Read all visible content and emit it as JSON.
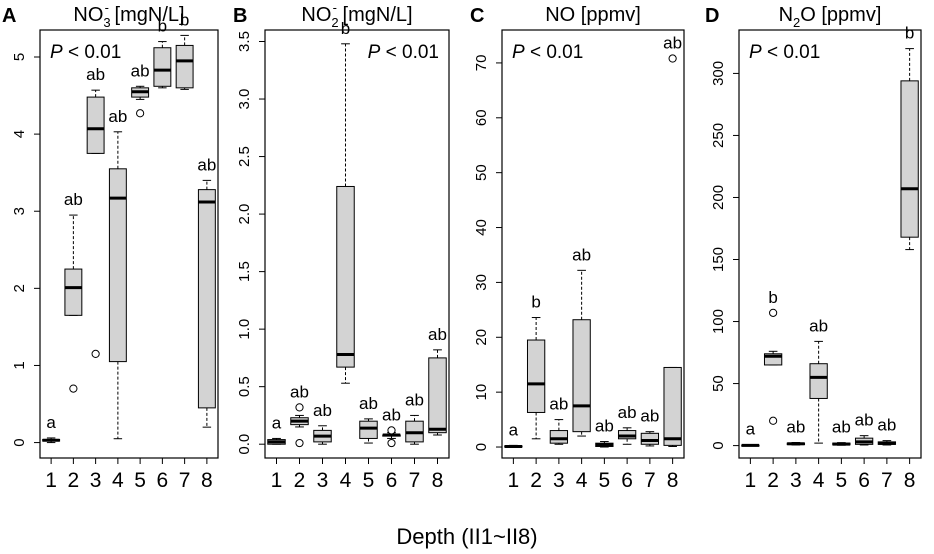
{
  "figure": {
    "xlabel": "Depth (II1~II8)"
  },
  "chart_data": [
    {
      "type": "boxplot",
      "panel_letter": "A",
      "title": "NO3- [mgN/L]",
      "title_parts": {
        "main": "NO",
        "sub": "3",
        "sup": "-",
        "unit": " [mgN/L]",
        "sup_before_sub": false
      },
      "p_label": "P < 0.01",
      "p_position": "top-left",
      "categories": [
        "1",
        "2",
        "3",
        "4",
        "5",
        "6",
        "7",
        "8"
      ],
      "ylim": [
        -0.2,
        5.35
      ],
      "yticks": [
        0,
        1,
        2,
        3,
        4,
        5
      ],
      "ytick_labels": [
        "0",
        "1",
        "2",
        "3",
        "4",
        "5"
      ],
      "boxes": [
        {
          "category": "1",
          "min": 0.0,
          "q1": 0.02,
          "median": 0.03,
          "q3": 0.04,
          "max": 0.06,
          "outliers": [],
          "letter": "a"
        },
        {
          "category": "2",
          "min": 1.65,
          "q1": 1.65,
          "median": 2.01,
          "q3": 2.25,
          "max": 2.95,
          "outliers": [
            0.7
          ],
          "letter": "ab"
        },
        {
          "category": "3",
          "min": 3.75,
          "q1": 3.75,
          "median": 4.07,
          "q3": 4.48,
          "max": 4.57,
          "outliers": [
            1.15
          ],
          "letter": "ab"
        },
        {
          "category": "4",
          "min": 0.05,
          "q1": 1.05,
          "median": 3.17,
          "q3": 3.55,
          "max": 4.03,
          "outliers": [],
          "letter": "ab"
        },
        {
          "category": "5",
          "min": 4.45,
          "q1": 4.48,
          "median": 4.55,
          "q3": 4.6,
          "max": 4.62,
          "outliers": [
            4.27
          ],
          "letter": "ab"
        },
        {
          "category": "6",
          "min": 4.6,
          "q1": 4.62,
          "median": 4.83,
          "q3": 5.12,
          "max": 5.2,
          "outliers": [],
          "letter": "b"
        },
        {
          "category": "7",
          "min": 4.58,
          "q1": 4.6,
          "median": 4.95,
          "q3": 5.15,
          "max": 5.28,
          "outliers": [],
          "letter": "b"
        },
        {
          "category": "8",
          "min": 0.2,
          "q1": 0.45,
          "median": 3.12,
          "q3": 3.28,
          "max": 3.4,
          "outliers": [],
          "letter": "ab"
        }
      ]
    },
    {
      "type": "boxplot",
      "panel_letter": "B",
      "title": "NO2- [mgN/L]",
      "title_parts": {
        "main": "NO",
        "sub": "2",
        "sup": "-",
        "unit": " [mgN/L]",
        "sup_before_sub": false
      },
      "p_label": "P < 0.01",
      "p_position": "top-right",
      "categories": [
        "1",
        "2",
        "3",
        "4",
        "5",
        "6",
        "7",
        "8"
      ],
      "ylim": [
        -0.12,
        3.6
      ],
      "yticks": [
        0,
        0.5,
        1,
        1.5,
        2,
        2.5,
        3,
        3.5
      ],
      "ytick_labels": [
        "0.0",
        "0.5",
        "1.0",
        "1.5",
        "2.0",
        "2.5",
        "3.0",
        "3.5"
      ],
      "boxes": [
        {
          "category": "1",
          "min": 0.0,
          "q1": 0.0,
          "median": 0.02,
          "q3": 0.04,
          "max": 0.05,
          "outliers": [],
          "letter": "a"
        },
        {
          "category": "2",
          "min": 0.15,
          "q1": 0.17,
          "median": 0.2,
          "q3": 0.23,
          "max": 0.25,
          "outliers": [
            0.32,
            0.01
          ],
          "letter": "ab"
        },
        {
          "category": "3",
          "min": 0.0,
          "q1": 0.02,
          "median": 0.07,
          "q3": 0.12,
          "max": 0.16,
          "outliers": [],
          "letter": "ab"
        },
        {
          "category": "4",
          "min": 0.53,
          "q1": 0.67,
          "median": 0.78,
          "q3": 2.24,
          "max": 3.48,
          "outliers": [],
          "letter": "b"
        },
        {
          "category": "5",
          "min": 0.01,
          "q1": 0.05,
          "median": 0.14,
          "q3": 0.2,
          "max": 0.22,
          "outliers": [],
          "letter": "ab"
        },
        {
          "category": "6",
          "min": 0.05,
          "q1": 0.07,
          "median": 0.08,
          "q3": 0.08,
          "max": 0.1,
          "outliers": [
            0.12,
            0.01
          ],
          "letter": "ab"
        },
        {
          "category": "7",
          "min": 0.0,
          "q1": 0.02,
          "median": 0.1,
          "q3": 0.2,
          "max": 0.25,
          "outliers": [],
          "letter": "ab"
        },
        {
          "category": "8",
          "min": 0.08,
          "q1": 0.1,
          "median": 0.13,
          "q3": 0.75,
          "max": 0.82,
          "outliers": [],
          "letter": "ab"
        }
      ]
    },
    {
      "type": "boxplot",
      "panel_letter": "C",
      "title": "NO [ppmv]",
      "title_parts": {
        "main": "NO",
        "sub": "",
        "sup": "",
        "unit": " [ppmv]",
        "sup_before_sub": false
      },
      "p_label": "P < 0.01",
      "p_position": "top-left",
      "categories": [
        "1",
        "2",
        "3",
        "4",
        "5",
        "6",
        "7",
        "8"
      ],
      "ylim": [
        -2,
        76
      ],
      "yticks": [
        0,
        10,
        20,
        30,
        40,
        50,
        60,
        70
      ],
      "ytick_labels": [
        "0",
        "10",
        "20",
        "30",
        "40",
        "50",
        "60",
        "70"
      ],
      "boxes": [
        {
          "category": "1",
          "min": 0.0,
          "q1": 0.0,
          "median": 0.1,
          "q3": 0.2,
          "max": 0.3,
          "outliers": [],
          "letter": "a"
        },
        {
          "category": "2",
          "min": 1.5,
          "q1": 6.3,
          "median": 11.5,
          "q3": 19.5,
          "max": 23.6,
          "outliers": [],
          "letter": "b"
        },
        {
          "category": "3",
          "min": 0.5,
          "q1": 0.7,
          "median": 1.5,
          "q3": 3.0,
          "max": 5.0,
          "outliers": [],
          "letter": "ab"
        },
        {
          "category": "4",
          "min": 2.0,
          "q1": 2.8,
          "median": 7.5,
          "q3": 23.2,
          "max": 32.2,
          "outliers": [],
          "letter": "ab"
        },
        {
          "category": "5",
          "min": 0.0,
          "q1": 0.1,
          "median": 0.4,
          "q3": 0.7,
          "max": 1.0,
          "outliers": [],
          "letter": "ab"
        },
        {
          "category": "6",
          "min": 0.5,
          "q1": 1.5,
          "median": 2.0,
          "q3": 3.0,
          "max": 3.5,
          "outliers": [],
          "letter": "ab"
        },
        {
          "category": "7",
          "min": 0.2,
          "q1": 0.5,
          "median": 1.2,
          "q3": 2.5,
          "max": 2.8,
          "outliers": [],
          "letter": "ab"
        },
        {
          "category": "8",
          "min": 0.1,
          "q1": 0.3,
          "median": 1.5,
          "q3": 14.5,
          "max": 14.5,
          "outliers": [
            70.8
          ],
          "letter": "ab"
        }
      ]
    },
    {
      "type": "boxplot",
      "panel_letter": "D",
      "title": "N2O [ppmv]",
      "title_parts": {
        "main": "N",
        "sub": "2",
        "sup": "",
        "unit": "O [ppmv]",
        "sup_before_sub": false
      },
      "p_label": "P < 0.01",
      "p_position": "top-left",
      "categories": [
        "1",
        "2",
        "3",
        "4",
        "5",
        "6",
        "7",
        "8"
      ],
      "ylim": [
        -10,
        335
      ],
      "yticks": [
        0,
        50,
        100,
        150,
        200,
        250,
        300
      ],
      "ytick_labels": [
        "0",
        "50",
        "100",
        "150",
        "200",
        "250",
        "300"
      ],
      "boxes": [
        {
          "category": "1",
          "min": 0.0,
          "q1": 0.0,
          "median": 0.2,
          "q3": 0.4,
          "max": 0.8,
          "outliers": [],
          "letter": "a"
        },
        {
          "category": "2",
          "min": 65.0,
          "q1": 65.0,
          "median": 72.0,
          "q3": 74.0,
          "max": 76.0,
          "outliers": [
            107.0,
            20.0
          ],
          "letter": "b"
        },
        {
          "category": "3",
          "min": 0.5,
          "q1": 0.8,
          "median": 1.5,
          "q3": 2.0,
          "max": 2.5,
          "outliers": [],
          "letter": "ab"
        },
        {
          "category": "4",
          "min": 2.0,
          "q1": 38.0,
          "median": 55.0,
          "q3": 66.0,
          "max": 84.0,
          "outliers": [],
          "letter": "ab"
        },
        {
          "category": "5",
          "min": 0.3,
          "q1": 0.6,
          "median": 1.2,
          "q3": 2.0,
          "max": 2.4,
          "outliers": [],
          "letter": "ab"
        },
        {
          "category": "6",
          "min": 0.5,
          "q1": 1.0,
          "median": 3.0,
          "q3": 6.0,
          "max": 8.0,
          "outliers": [],
          "letter": "ab"
        },
        {
          "category": "7",
          "min": 0.5,
          "q1": 1.0,
          "median": 1.8,
          "q3": 3.0,
          "max": 4.0,
          "outliers": [],
          "letter": "ab"
        },
        {
          "category": "8",
          "min": 158.0,
          "q1": 168.0,
          "median": 207.0,
          "q3": 294.0,
          "max": 320.0,
          "outliers": [],
          "letter": "b"
        }
      ]
    }
  ]
}
